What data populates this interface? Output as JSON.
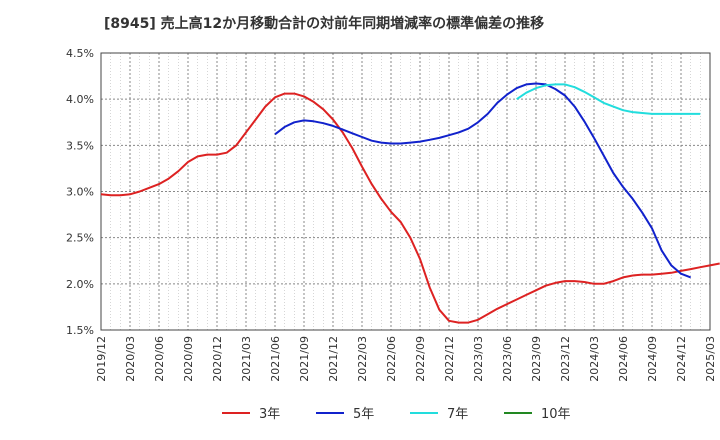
{
  "chart_data": {
    "type": "line",
    "title": "[8945]  売上高12か月移動合計の対前年同期増減率の標準偏差の推移",
    "xlabel": "",
    "ylabel": "",
    "ylim": [
      1.5,
      4.5
    ],
    "y_ticks": [
      "1.5%",
      "2.0%",
      "2.5%",
      "3.0%",
      "3.5%",
      "4.0%",
      "4.5%"
    ],
    "x_ticks": [
      "2019/12",
      "2020/03",
      "2020/06",
      "2020/09",
      "2020/12",
      "2021/03",
      "2021/06",
      "2021/09",
      "2021/12",
      "2022/03",
      "2022/06",
      "2022/09",
      "2022/12",
      "2023/03",
      "2023/06",
      "2023/09",
      "2023/12",
      "2024/03",
      "2024/06",
      "2024/09",
      "2024/12",
      "2025/03"
    ],
    "grid": true,
    "legend_position": "bottom",
    "series": [
      {
        "name": "3年",
        "color": "#dd2222",
        "start_month": 0,
        "values": [
          2.97,
          2.96,
          2.96,
          2.97,
          3.0,
          3.04,
          3.08,
          3.14,
          3.22,
          3.32,
          3.38,
          3.4,
          3.4,
          3.42,
          3.5,
          3.64,
          3.78,
          3.92,
          4.02,
          4.06,
          4.06,
          4.03,
          3.97,
          3.89,
          3.78,
          3.64,
          3.47,
          3.27,
          3.08,
          2.92,
          2.78,
          2.67,
          2.5,
          2.27,
          1.96,
          1.72,
          1.6,
          1.58,
          1.58,
          1.61,
          1.67,
          1.73,
          1.78,
          1.83,
          1.88,
          1.93,
          1.98,
          2.01,
          2.03,
          2.03,
          2.02,
          2.0,
          2.0,
          2.03,
          2.07,
          2.09,
          2.1,
          2.1,
          2.11,
          2.12,
          2.14,
          2.16,
          2.18,
          2.2,
          2.22
        ]
      },
      {
        "name": "5年",
        "color": "#1122cc",
        "start_month": 18,
        "values": [
          3.62,
          3.7,
          3.75,
          3.77,
          3.76,
          3.74,
          3.71,
          3.67,
          3.63,
          3.59,
          3.55,
          3.53,
          3.52,
          3.52,
          3.53,
          3.54,
          3.56,
          3.58,
          3.61,
          3.64,
          3.68,
          3.75,
          3.84,
          3.96,
          4.05,
          4.12,
          4.16,
          4.17,
          4.16,
          4.11,
          4.04,
          3.92,
          3.76,
          3.58,
          3.39,
          3.2,
          3.05,
          2.92,
          2.77,
          2.6,
          2.36,
          2.2,
          2.11,
          2.07
        ]
      },
      {
        "name": "7年",
        "color": "#22dddd",
        "start_month": 43,
        "values": [
          4.0,
          4.07,
          4.12,
          4.15,
          4.16,
          4.16,
          4.13,
          4.08,
          4.02,
          3.96,
          3.92,
          3.88,
          3.86,
          3.85,
          3.84,
          3.84,
          3.84,
          3.84,
          3.84,
          3.84
        ]
      },
      {
        "name": "10年",
        "color": "#228822",
        "start_month": 0,
        "values": []
      }
    ]
  }
}
